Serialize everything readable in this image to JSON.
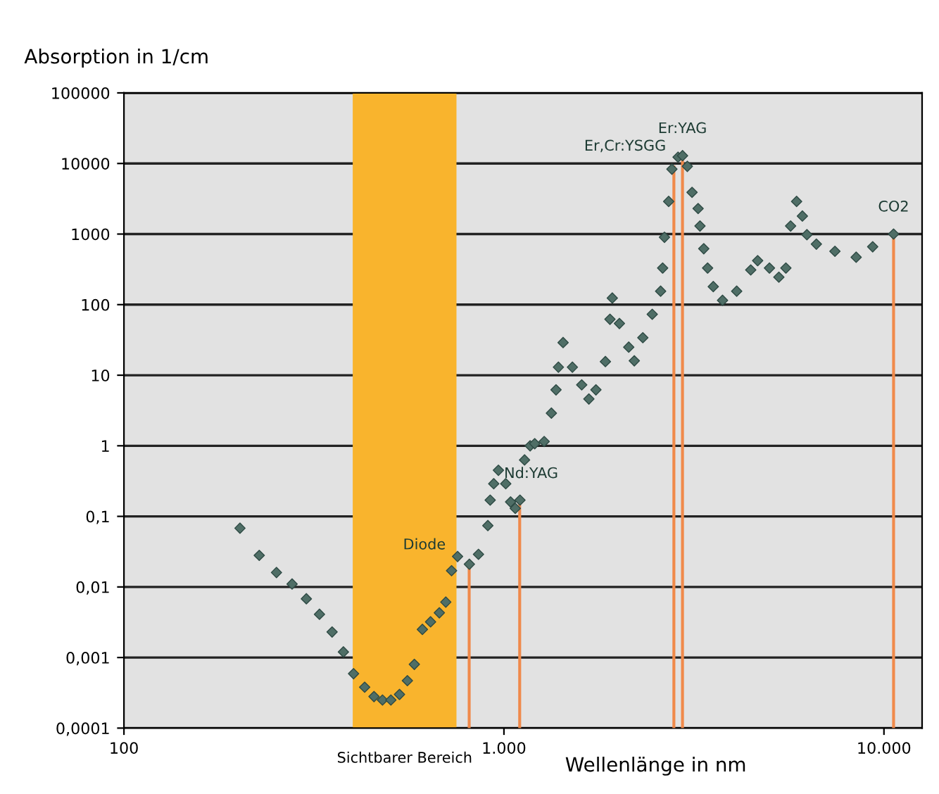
{
  "chart_data": {
    "type": "scatter",
    "ylabel": "Absorption in 1/cm",
    "xlabel": "Wellenlänge in nm",
    "log": "xy",
    "xlim": [
      100,
      12600
    ],
    "ylim": [
      0.0001,
      100000
    ],
    "xticks": [
      {
        "value": 100,
        "label": "100"
      },
      {
        "value": 1000,
        "label": "1.000"
      },
      {
        "value": 10000,
        "label": "10.000"
      }
    ],
    "yticks": [
      {
        "value": 0.0001,
        "label": "0,0001"
      },
      {
        "value": 0.001,
        "label": "0,001"
      },
      {
        "value": 0.01,
        "label": "0,01"
      },
      {
        "value": 0.1,
        "label": "0,1"
      },
      {
        "value": 1,
        "label": "1"
      },
      {
        "value": 10,
        "label": "10"
      },
      {
        "value": 100,
        "label": "100"
      },
      {
        "value": 1000,
        "label": "1000"
      },
      {
        "value": 10000,
        "label": "10000"
      },
      {
        "value": 100000,
        "label": "100000"
      }
    ],
    "grid": "y",
    "marker": "diamond",
    "series": [
      {
        "color": "#4f6e66",
        "x": [
          202,
          227,
          252,
          277,
          302,
          327,
          353,
          378,
          402,
          430,
          455,
          479,
          504,
          531,
          557,
          581,
          610,
          641,
          676,
          703,
          728,
          755,
          811,
          857,
          907,
          920,
          940,
          967,
          1011,
          1041,
          1071,
          1102,
          1133,
          1172,
          1205,
          1276,
          1333,
          1371,
          1391,
          1431,
          1514,
          1602,
          1673,
          1746,
          1849,
          1901,
          1928,
          2013,
          2130,
          2203,
          2320,
          2456,
          2584,
          2616,
          2645,
          2713,
          2767,
          2872,
          2951,
          3038,
          3126,
          3243,
          3280,
          3356,
          3435,
          3555,
          3760,
          4097,
          4461,
          4652,
          4997,
          5290,
          5520,
          5680,
          5890,
          6100,
          6270,
          6640,
          7430,
          8450,
          9340,
          10600
        ],
        "values": [
          0.068,
          0.028,
          0.016,
          0.011,
          0.0068,
          0.0041,
          0.0023,
          0.0012,
          0.00059,
          0.00038,
          0.00028,
          0.00025,
          0.00025,
          0.0003,
          0.00047,
          0.0008,
          0.0025,
          0.0032,
          0.0043,
          0.0061,
          0.017,
          0.027,
          0.021,
          0.029,
          0.074,
          0.17,
          0.29,
          0.45,
          0.29,
          0.16,
          0.13,
          0.17,
          0.63,
          1.0,
          1.07,
          1.15,
          2.9,
          6.2,
          13,
          29,
          13,
          7.3,
          4.6,
          6.2,
          15.6,
          62,
          124,
          54,
          25,
          16,
          34,
          73,
          155,
          330,
          900,
          2900,
          8300,
          12300,
          12900,
          9100,
          3900,
          2300,
          1300,
          620,
          330,
          180,
          115,
          155,
          310,
          420,
          330,
          245,
          330,
          1300,
          2900,
          1800,
          980,
          720,
          570,
          470,
          660,
          1000
        ]
      }
    ],
    "bands": [
      {
        "axis": "x",
        "from": 400,
        "to": 750,
        "label": "Sichtbarer Bereich",
        "color": "#f9b42d"
      }
    ],
    "ref_lines": [
      {
        "axis": "x",
        "value": 810,
        "label": "Diode",
        "color": "#f08a4b"
      },
      {
        "axis": "x",
        "value": 1100,
        "label": "Nd:YAG",
        "color": "#f08a4b"
      },
      {
        "axis": "x",
        "value": 2800,
        "label": "Er,Cr:YSGG",
        "color": "#f08a4b"
      },
      {
        "axis": "x",
        "value": 2950,
        "label": "Er:YAG",
        "color": "#f08a4b"
      },
      {
        "axis": "x",
        "value": 10600,
        "label": "CO2",
        "color": "#f08a4b"
      }
    ]
  }
}
